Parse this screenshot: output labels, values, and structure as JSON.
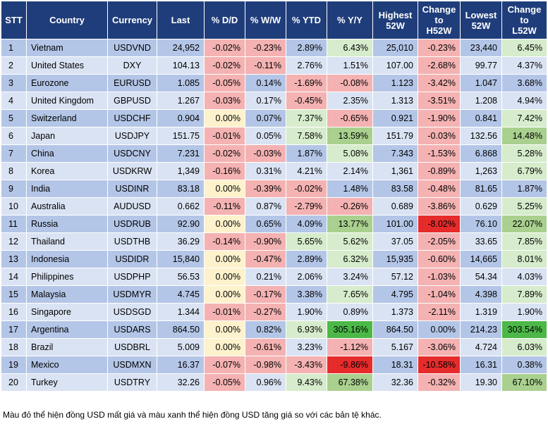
{
  "table": {
    "headers": [
      "STT",
      "Country",
      "Currency",
      "Last",
      "% D/D",
      "% W/W",
      "% YTD",
      "% Y/Y",
      "Highest\n52W",
      "Change\nto\nH52W",
      "Lowest\n52W",
      "Change\nto\nL52W"
    ],
    "rows": [
      [
        "1",
        "Vietnam",
        "USDVND",
        "24,952",
        "-0.02%",
        "-0.23%",
        "2.89%",
        "6.43%",
        "25,010",
        "-0.23%",
        "23,440",
        "6.45%"
      ],
      [
        "2",
        "United States",
        "DXY",
        "104.13",
        "-0.02%",
        "-0.11%",
        "2.76%",
        "1.51%",
        "107.00",
        "-2.68%",
        "99.77",
        "4.37%"
      ],
      [
        "3",
        "Eurozone",
        "EURUSD",
        "1.085",
        "-0.05%",
        "0.14%",
        "-1.69%",
        "-0.08%",
        "1.123",
        "-3.42%",
        "1.047",
        "3.68%"
      ],
      [
        "4",
        "United Kingdom",
        "GBPUSD",
        "1.267",
        "-0.03%",
        "0.17%",
        "-0.45%",
        "2.35%",
        "1.313",
        "-3.51%",
        "1.208",
        "4.94%"
      ],
      [
        "5",
        "Switzerland",
        "USDCHF",
        "0.904",
        "0.00%",
        "0.07%",
        "7.37%",
        "-0.65%",
        "0.921",
        "-1.90%",
        "0.841",
        "7.42%"
      ],
      [
        "6",
        "Japan",
        "USDJPY",
        "151.75",
        "-0.01%",
        "0.05%",
        "7.58%",
        "13.59%",
        "151.79",
        "-0.03%",
        "132.56",
        "14.48%"
      ],
      [
        "7",
        "China",
        "USDCNY",
        "7.231",
        "-0.02%",
        "-0.03%",
        "1.87%",
        "5.08%",
        "7.343",
        "-1.53%",
        "6.868",
        "5.28%"
      ],
      [
        "8",
        "Korea",
        "USDKRW",
        "1,349",
        "-0.16%",
        "0.31%",
        "4.21%",
        "2.14%",
        "1,361",
        "-0.89%",
        "1,263",
        "6.79%"
      ],
      [
        "9",
        "India",
        "USDINR",
        "83.18",
        "0.00%",
        "-0.39%",
        "-0.02%",
        "1.48%",
        "83.58",
        "-0.48%",
        "81.65",
        "1.87%"
      ],
      [
        "10",
        "Australia",
        "AUDUSD",
        "0.662",
        "-0.11%",
        "0.87%",
        "-2.79%",
        "-0.26%",
        "0.689",
        "-3.86%",
        "0.629",
        "5.25%"
      ],
      [
        "11",
        "Russia",
        "USDRUB",
        "92.90",
        "0.00%",
        "0.65%",
        "4.09%",
        "13.77%",
        "101.00",
        "-8.02%",
        "76.10",
        "22.07%"
      ],
      [
        "12",
        "Thailand",
        "USDTHB",
        "36.29",
        "-0.14%",
        "-0.90%",
        "5.65%",
        "5.62%",
        "37.05",
        "-2.05%",
        "33.65",
        "7.85%"
      ],
      [
        "13",
        "Indonesia",
        "USDIDR",
        "15,840",
        "0.00%",
        "-0.47%",
        "2.89%",
        "6.32%",
        "15,935",
        "-0.60%",
        "14,665",
        "8.01%"
      ],
      [
        "14",
        "Philippines",
        "USDPHP",
        "56.53",
        "0.00%",
        "0.21%",
        "2.06%",
        "3.24%",
        "57.12",
        "-1.03%",
        "54.34",
        "4.03%"
      ],
      [
        "15",
        "Malaysia",
        "USDMYR",
        "4.745",
        "0.00%",
        "-0.17%",
        "3.38%",
        "7.65%",
        "4.795",
        "-1.04%",
        "4.398",
        "7.89%"
      ],
      [
        "16",
        "Singapore",
        "USDSGD",
        "1.344",
        "-0.01%",
        "-0.27%",
        "1.90%",
        "0.89%",
        "1.373",
        "-2.11%",
        "1.319",
        "1.90%"
      ],
      [
        "17",
        "Argentina",
        "USDARS",
        "864.50",
        "0.00%",
        "0.82%",
        "6.93%",
        "305.16%",
        "864.50",
        "0.00%",
        "214.23",
        "303.54%"
      ],
      [
        "18",
        "Brazil",
        "USDBRL",
        "5.009",
        "0.00%",
        "-0.61%",
        "3.23%",
        "-1.12%",
        "5.167",
        "-3.06%",
        "4.724",
        "6.03%"
      ],
      [
        "19",
        "Mexico",
        "USDMXN",
        "16.37",
        "-0.07%",
        "-0.98%",
        "-3.43%",
        "-9.86%",
        "18.31",
        "-10.58%",
        "16.31",
        "0.38%"
      ],
      [
        "20",
        "Turkey",
        "USDTRY",
        "32.26",
        "-0.05%",
        "0.96%",
        "9.43%",
        "67.38%",
        "32.36",
        "-0.32%",
        "19.30",
        "67.10%"
      ]
    ]
  },
  "note": "Màu đỏ thể hiện đồng USD mất giá và màu xanh thể hiện đồng USD tăng giá so với các bản tệ khác.",
  "colors": {
    "header_bg": "#1f3d7a",
    "row_odd": "#b4c6e7",
    "row_even": "#dae3f3",
    "light_green": "#d6eccc",
    "medium_green": "#a9d08e",
    "strong_green": "#4cb848",
    "pink": "#f4b2b2",
    "red": "#e62b2b",
    "yellow": "#fdf2cc"
  }
}
